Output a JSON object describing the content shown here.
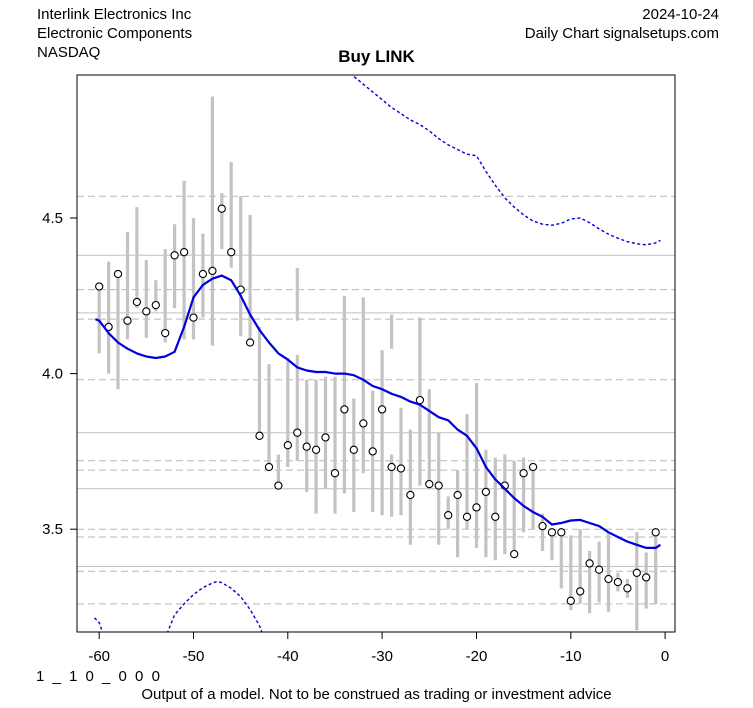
{
  "header": {
    "company": "Interlink Electronics Inc",
    "sector": "Electronic Components",
    "exchange": "NASDAQ",
    "date": "2024-10-24",
    "source": "Daily Chart signalsetups.com"
  },
  "title": "Buy LINK",
  "footer": {
    "code": "1 _ 1 0 _ 0 0 0",
    "disclaimer": "Output of a model. Not to be construed as trading or investment advice"
  },
  "chart_data": {
    "type": "line",
    "title": "Buy LINK",
    "xlabel": "",
    "ylabel": "",
    "xlim": [
      -62.4,
      1.1
    ],
    "ylim": [
      3.17,
      4.96
    ],
    "grid": "horizontal-only",
    "legend": "none",
    "x_ticks": [
      -60,
      -50,
      -40,
      -30,
      -20,
      -10,
      0
    ],
    "x_tick_labels": [
      "-60",
      "-50",
      "-40",
      "-30",
      "-20",
      "-10",
      "0"
    ],
    "y_ticks": [
      3.5,
      4.0,
      4.5
    ],
    "y_tick_labels": [
      "3.5",
      "4.0",
      "4.5"
    ],
    "hlines_solid": [
      4.38,
      4.195,
      3.81,
      3.63,
      3.38
    ],
    "hlines_dashed": [
      4.57,
      4.27,
      4.175,
      3.98,
      3.72,
      3.69,
      3.5,
      3.475,
      3.365,
      3.26
    ],
    "colors": {
      "model_blue": "#0000dd",
      "bar_gray": "#c3c3c3",
      "grid_solid": "#c0c0c0",
      "grid_dashed": "#b8b8b8",
      "point_stroke": "#000000",
      "point_fill": "#ffffff",
      "frame": "#000000",
      "background": "#ffffff"
    },
    "daily_bars": {
      "name": "high-low range bars",
      "x": [
        -60,
        -59,
        -58,
        -57,
        -56,
        -55,
        -54,
        -53,
        -52,
        -51,
        -50,
        -49,
        -48,
        -47,
        -46,
        -45,
        -44,
        -43,
        -42,
        -41,
        -40,
        -39,
        -38,
        -37,
        -36,
        -35,
        -34,
        -33,
        -32,
        -31,
        -30,
        -29,
        -28,
        -27,
        -26,
        -25,
        -24,
        -23,
        -22,
        -21,
        -20,
        -19,
        -18,
        -17,
        -16,
        -15,
        -14,
        -13,
        -12,
        -11,
        -10,
        -9,
        -8,
        -7,
        -6,
        -5,
        -4,
        -3,
        -2,
        -1
      ],
      "low": [
        4.065,
        4.0,
        3.95,
        4.11,
        4.21,
        4.115,
        4.2,
        4.1,
        4.21,
        4.11,
        4.11,
        4.18,
        4.09,
        4.4,
        4.34,
        4.12,
        4.09,
        3.79,
        3.69,
        3.64,
        3.7,
        3.72,
        3.62,
        3.55,
        3.63,
        3.55,
        3.615,
        3.555,
        3.68,
        3.555,
        3.545,
        3.54,
        3.545,
        3.45,
        3.64,
        3.63,
        3.45,
        3.5,
        3.41,
        3.5,
        3.44,
        3.41,
        3.4,
        3.42,
        3.415,
        3.49,
        3.5,
        3.43,
        3.4,
        3.31,
        3.24,
        3.26,
        3.23,
        3.265,
        3.235,
        3.3,
        3.28,
        3.175,
        3.245,
        3.26
      ],
      "high": [
        4.285,
        4.36,
        4.33,
        4.455,
        4.535,
        4.365,
        4.3,
        4.4,
        4.48,
        4.62,
        4.5,
        4.45,
        4.89,
        4.58,
        4.68,
        4.57,
        4.51,
        4.15,
        4.03,
        3.74,
        4.05,
        4.06,
        3.98,
        3.98,
        3.99,
        3.99,
        4.25,
        3.92,
        4.245,
        3.945,
        4.075,
        3.74,
        3.89,
        3.82,
        4.18,
        3.95,
        3.81,
        3.605,
        3.69,
        3.87,
        3.97,
        3.755,
        3.73,
        3.74,
        3.72,
        3.73,
        3.7,
        3.55,
        3.5,
        3.49,
        3.48,
        3.5,
        3.43,
        3.46,
        3.49,
        3.36,
        3.34,
        3.49,
        3.425,
        3.49
      ],
      "close": [
        4.28,
        4.15,
        4.32,
        4.17,
        4.23,
        4.2,
        4.22,
        4.13,
        4.38,
        4.39,
        4.18,
        4.32,
        4.33,
        4.53,
        4.39,
        4.27,
        4.1,
        3.8,
        3.7,
        3.64,
        3.77,
        3.81,
        3.765,
        3.755,
        3.795,
        3.68,
        3.885,
        3.755,
        3.84,
        3.75,
        3.885,
        3.7,
        3.695,
        3.61,
        3.915,
        3.645,
        3.64,
        3.545,
        3.61,
        3.54,
        3.57,
        3.62,
        3.54,
        3.64,
        3.42,
        3.68,
        3.7,
        3.51,
        3.49,
        3.49,
        3.27,
        3.3,
        3.39,
        3.37,
        3.34,
        3.33,
        3.31,
        3.36,
        3.345,
        3.49
      ],
      "extra_segments": [
        {
          "x": -39,
          "low": 4.17,
          "high": 4.34
        },
        {
          "x": -29,
          "low": 4.08,
          "high": 4.19
        }
      ]
    },
    "model_line": {
      "name": "model smoothing line",
      "style": "solid",
      "x": [
        -60.4,
        -60,
        -59,
        -58,
        -57,
        -56,
        -55,
        -54,
        -53,
        -52,
        -51,
        -50,
        -49,
        -48,
        -47,
        -46,
        -45,
        -44,
        -43,
        -42,
        -41,
        -40,
        -39,
        -38,
        -37,
        -36,
        -35,
        -34,
        -33,
        -32,
        -31,
        -30,
        -29,
        -28,
        -27,
        -26,
        -25,
        -24,
        -23,
        -22,
        -21,
        -20,
        -19,
        -18,
        -17,
        -16,
        -15,
        -14,
        -13,
        -12,
        -11,
        -10,
        -9,
        -8,
        -7,
        -6,
        -5,
        -4,
        -3,
        -2,
        -1,
        -0.5
      ],
      "y": [
        4.175,
        4.17,
        4.13,
        4.1,
        4.08,
        4.065,
        4.055,
        4.05,
        4.055,
        4.07,
        4.15,
        4.245,
        4.285,
        4.305,
        4.315,
        4.3,
        4.25,
        4.19,
        4.14,
        4.1,
        4.065,
        4.045,
        4.02,
        4.01,
        4.005,
        4.005,
        4.0,
        4.0,
        3.995,
        3.98,
        3.96,
        3.95,
        3.935,
        3.925,
        3.91,
        3.9,
        3.88,
        3.86,
        3.85,
        3.82,
        3.8,
        3.76,
        3.7,
        3.66,
        3.63,
        3.6,
        3.575,
        3.555,
        3.54,
        3.515,
        3.52,
        3.528,
        3.53,
        3.52,
        3.51,
        3.49,
        3.475,
        3.46,
        3.45,
        3.44,
        3.44,
        3.45
      ]
    },
    "upper_band": {
      "name": "upper dashed band",
      "style": "dashed",
      "x": [
        -33.2,
        -33,
        -32,
        -31,
        -30,
        -29,
        -28,
        -27,
        -26,
        -25,
        -24,
        -23,
        -22,
        -21,
        -20,
        -19,
        -18,
        -17,
        -16,
        -15,
        -14,
        -13,
        -12,
        -11,
        -10,
        -9,
        -8,
        -7,
        -6,
        -5,
        -4,
        -3,
        -2,
        -1,
        -0.5
      ],
      "y": [
        4.97,
        4.955,
        4.93,
        4.905,
        4.88,
        4.855,
        4.835,
        4.815,
        4.8,
        4.78,
        4.755,
        4.735,
        4.72,
        4.705,
        4.7,
        4.65,
        4.605,
        4.565,
        4.535,
        4.51,
        4.49,
        4.48,
        4.477,
        4.483,
        4.497,
        4.5,
        4.485,
        4.465,
        4.448,
        4.435,
        4.424,
        4.417,
        4.414,
        4.42,
        4.428
      ]
    },
    "lower_band_segments": [
      {
        "name": "lower dashed band (left stub)",
        "style": "dashed",
        "x": [
          -60.5,
          -60,
          -59.6
        ],
        "y": [
          3.215,
          3.2,
          3.165
        ]
      },
      {
        "name": "lower dashed band (arc)",
        "style": "dashed",
        "x": [
          -52.8,
          -52,
          -51,
          -50,
          -49,
          -48,
          -47.5,
          -47,
          -46,
          -45,
          -44,
          -43,
          -42.7
        ],
        "y": [
          3.165,
          3.225,
          3.26,
          3.29,
          3.312,
          3.327,
          3.332,
          3.328,
          3.31,
          3.283,
          3.242,
          3.19,
          3.165
        ]
      }
    ]
  }
}
